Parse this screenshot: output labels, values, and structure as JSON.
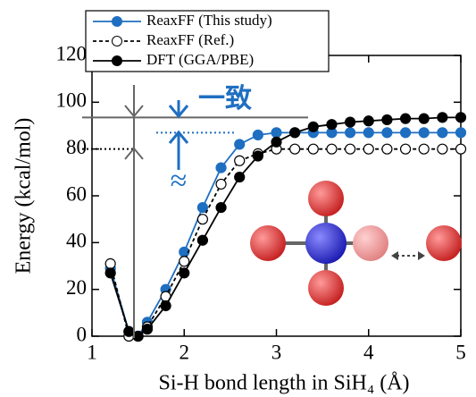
{
  "chart_data": {
    "type": "line",
    "xlabel": "Si-H bond length in SiH₄ (Å)",
    "ylabel": "Energy (kcal/mol)",
    "x": [
      1.2,
      1.4,
      1.5,
      1.6,
      1.8,
      2.0,
      2.2,
      2.4,
      2.6,
      2.8,
      3.0,
      3.2,
      3.4,
      3.6,
      3.8,
      4.0,
      4.2,
      4.4,
      4.6,
      4.8,
      5.0
    ],
    "series": [
      {
        "name": "ReaxFF (This study)",
        "color": "#1f6fc1",
        "linestyle": "solid",
        "marker": "filled",
        "values": [
          29,
          2,
          0,
          6,
          20,
          36,
          55,
          72,
          82,
          86,
          87,
          87,
          87,
          87,
          87,
          87,
          87,
          87,
          87,
          87,
          87
        ]
      },
      {
        "name": "ReaxFF (Ref.)",
        "color": "#000000",
        "linestyle": "dashed",
        "marker": "open",
        "values": [
          31,
          0,
          0,
          4,
          17,
          32,
          50,
          65,
          75,
          78,
          80,
          80,
          80,
          80,
          80,
          80,
          80,
          80,
          80,
          80,
          80
        ]
      },
      {
        "name": "DFT (GGA/PBE)",
        "color": "#000000",
        "linestyle": "solid",
        "marker": "filled",
        "values": [
          27,
          2,
          0,
          3,
          13,
          27,
          41,
          55,
          68,
          77,
          83,
          87,
          89.5,
          90.5,
          91.5,
          92,
          92.5,
          93,
          93,
          93.5,
          93.5
        ]
      }
    ],
    "annotations": [
      "一致",
      "≈"
    ],
    "xlim": [
      1,
      5
    ],
    "xticks": [
      1,
      2,
      3,
      4,
      5
    ],
    "ylim": [
      0,
      120
    ],
    "yticks": [
      0,
      20,
      40,
      60,
      80,
      100,
      120
    ]
  }
}
